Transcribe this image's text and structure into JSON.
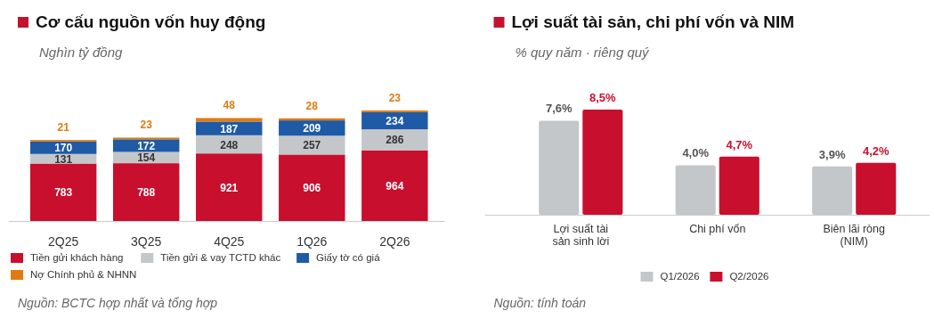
{
  "chart_data": [
    {
      "type": "bar",
      "title": "Cơ cấu nguồn vốn huy động",
      "subtitle": "Nghìn tỷ đồng",
      "categories": [
        "2Q25",
        "3Q25",
        "4Q25",
        "1Q26",
        "2Q26"
      ],
      "stacked": true,
      "data_labels": true,
      "legend": "bottom",
      "series": [
        {
          "name": "Tiền gửi khách hàng",
          "color": "#c80f2e",
          "values": [
            783,
            788,
            921,
            906,
            964
          ]
        },
        {
          "name": "Tiền gửi & vay TCTD khác",
          "color": "#c4c7ca",
          "values": [
            131,
            154,
            248,
            257,
            286
          ]
        },
        {
          "name": "Giấy tờ có giá",
          "color": "#1f5aa6",
          "values": [
            170,
            172,
            187,
            209,
            234
          ]
        },
        {
          "name": "Nợ Chính phủ & NHNN",
          "color": "#e07b10",
          "values": [
            21,
            23,
            48,
            28,
            23
          ]
        }
      ],
      "annotations": [
        "Nguồn: BCTC hợp nhất và tổng hợp"
      ]
    },
    {
      "type": "bar",
      "title": "Lợi suất tài sản, chi phí vốn và NIM",
      "subtitle": "% quy năm · riêng quý",
      "categories": [
        "Lợi suất tài sản sinh lời",
        "Chi phí vốn",
        "Biên lãi ròng (NIM)"
      ],
      "legend": "bottom",
      "series": [
        {
          "name": "Q1/2026",
          "color": "#c4c7ca",
          "values": [
            7.6,
            4.0,
            3.9
          ],
          "value_labels": [
            "7,6%",
            "4,0%",
            "3,9%"
          ]
        },
        {
          "name": "Q2/2026",
          "color": "#c8102e",
          "values": [
            8.5,
            4.7,
            4.2
          ],
          "value_labels": [
            "8,5%",
            "4,7%",
            "4,2%"
          ]
        }
      ],
      "annotations": [
        "Nguồn: tính toán"
      ]
    }
  ]
}
